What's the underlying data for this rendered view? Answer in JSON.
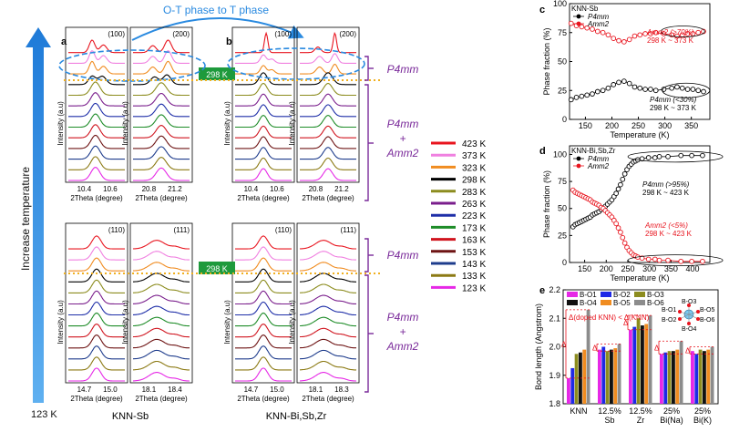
{
  "left": {
    "arrow_label": "Increase temperature",
    "arrow_bottom": "123 K",
    "phase_arrow_label": "O-T phase to T phase",
    "panel_a": "a",
    "panel_b": "b",
    "box_298": "298 K",
    "box_298_b": "298 K",
    "group_a_label": "KNN-Sb",
    "group_b_label": "KNN-Bi,Sb,Zr",
    "phase_p4mm_top": "P4mm",
    "phase_mix_top_1": "P4mm",
    "phase_mix_top_2": "+",
    "phase_mix_top_3": "Amm2",
    "phase_p4mm_bot": "P4mm",
    "phase_mix_bot_1": "P4mm",
    "phase_mix_bot_2": "+",
    "phase_mix_bot_3": "Amm2",
    "ylabel": "Intensity (a.u)",
    "xlabel": "2Theta (degree)",
    "peaks": {
      "a_top_1": {
        "label": "(100)",
        "ticks": [
          "10.4",
          "10.6"
        ]
      },
      "a_top_2": {
        "label": "(200)",
        "ticks": [
          "20.8",
          "21.2"
        ]
      },
      "b_top_1": {
        "label": "(100)",
        "ticks": [
          "10.4",
          "10.6"
        ]
      },
      "b_top_2": {
        "label": "(200)",
        "ticks": [
          "20.8",
          "21.2"
        ]
      },
      "a_bot_1": {
        "label": "(110)",
        "ticks": [
          "14.7",
          "15.0"
        ]
      },
      "a_bot_2": {
        "label": "(111)",
        "ticks": [
          "18.1",
          "18.4"
        ]
      },
      "b_bot_1": {
        "label": "(110)",
        "ticks": [
          "14.7",
          "15.0"
        ]
      },
      "b_bot_2": {
        "label": "(111)",
        "ticks": [
          "18.1",
          "18.3"
        ]
      }
    },
    "legend": [
      {
        "label": "423 K",
        "color": "#e8141e"
      },
      {
        "label": "373 K",
        "color": "#f080e0"
      },
      {
        "label": "323 K",
        "color": "#f08c20"
      },
      {
        "label": "298 K",
        "color": "#000000"
      },
      {
        "label": "283 K",
        "color": "#8c8c1e"
      },
      {
        "label": "263 K",
        "color": "#7a1e8c"
      },
      {
        "label": "223 K",
        "color": "#1e2ea8"
      },
      {
        "label": "173 K",
        "color": "#1e8c28"
      },
      {
        "label": "163 K",
        "color": "#d0141e"
      },
      {
        "label": "153 K",
        "color": "#6e1414"
      },
      {
        "label": "143 K",
        "color": "#1e3c8c"
      },
      {
        "label": "133 K",
        "color": "#8c7a14"
      },
      {
        "label": "123 K",
        "color": "#e628e6"
      }
    ]
  },
  "chart_data": [
    {
      "panel": "c",
      "type": "scatter",
      "title": "KNN-Sb",
      "xlabel": "Temperature (K)",
      "ylabel": "Phase fraction (%)",
      "xlim": [
        120,
        385
      ],
      "ylim": [
        0,
        100
      ],
      "xticks": [
        150,
        200,
        250,
        300,
        350
      ],
      "yticks": [
        0,
        25,
        50,
        75,
        100
      ],
      "x": [
        123,
        133,
        143,
        153,
        163,
        173,
        183,
        193,
        203,
        213,
        223,
        233,
        243,
        253,
        263,
        273,
        283,
        298,
        313,
        323,
        333,
        343,
        353,
        363,
        373
      ],
      "series": [
        {
          "name": "P4mm",
          "color": "#000000",
          "values": [
            17,
            19,
            20,
            21,
            22,
            24,
            25,
            27,
            30,
            32,
            33,
            31,
            28,
            27,
            26,
            26,
            25,
            26,
            27,
            28,
            27,
            26,
            26,
            25,
            24
          ]
        },
        {
          "name": "Amm2",
          "color": "#e8141e",
          "values": [
            83,
            81,
            80,
            79,
            78,
            76,
            75,
            73,
            70,
            68,
            67,
            69,
            72,
            73,
            74,
            74,
            75,
            74,
            73,
            72,
            73,
            74,
            74,
            75,
            76
          ]
        }
      ],
      "annotations": [
        {
          "text": "Amm2 (>70%)",
          "color": "#e8141e"
        },
        {
          "text": "298 K ~ 373 K",
          "color": "#e8141e"
        },
        {
          "text": "P4mm (<30%)",
          "color": "#000000"
        },
        {
          "text": "298 K ~ 373 K",
          "color": "#000000"
        }
      ]
    },
    {
      "panel": "d",
      "type": "scatter",
      "title": "KNN-Bi,Sb,Zr",
      "xlabel": "Temperature (K)",
      "ylabel": "Phase fraction (%)",
      "xlim": [
        115,
        440
      ],
      "ylim": [
        0,
        108
      ],
      "xticks": [
        150,
        200,
        250,
        300,
        350,
        400
      ],
      "yticks": [
        0,
        25,
        50,
        75,
        100
      ],
      "x": [
        123,
        128,
        133,
        138,
        143,
        148,
        153,
        158,
        163,
        168,
        173,
        178,
        183,
        188,
        193,
        198,
        203,
        208,
        213,
        218,
        223,
        228,
        233,
        238,
        243,
        248,
        253,
        258,
        263,
        268,
        273,
        283,
        298,
        313,
        323,
        343,
        373,
        398,
        423
      ],
      "series": [
        {
          "name": "P4mm",
          "color": "#000000",
          "values": [
            33,
            35,
            36,
            37,
            38,
            39,
            40,
            41,
            42,
            44,
            45,
            46,
            47,
            49,
            50,
            52,
            54,
            56,
            58,
            61,
            64,
            68,
            72,
            77,
            82,
            86,
            89,
            91,
            93,
            94,
            95,
            96,
            97,
            97,
            98,
            98,
            99,
            99,
            99
          ]
        },
        {
          "name": "Amm2",
          "color": "#e8141e",
          "values": [
            67,
            65,
            64,
            63,
            62,
            61,
            60,
            59,
            58,
            56,
            55,
            54,
            53,
            51,
            50,
            48,
            46,
            44,
            42,
            39,
            36,
            32,
            28,
            23,
            18,
            14,
            11,
            9,
            7,
            6,
            5,
            4,
            3,
            3,
            2,
            2,
            1,
            1,
            1
          ]
        }
      ],
      "annotations": [
        {
          "text": "P4mm (>95%)",
          "color": "#000000"
        },
        {
          "text": "298 K ~ 423 K",
          "color": "#000000"
        },
        {
          "text": "Amm2 (<5%)",
          "color": "#e8141e"
        },
        {
          "text": "298 K ~ 423 K",
          "color": "#e8141e"
        }
      ]
    },
    {
      "panel": "e",
      "type": "bar",
      "xlabel": "",
      "ylabel": "Bond length (Angstrom)",
      "ylim": [
        1.8,
        2.2
      ],
      "yticks": [
        1.8,
        1.9,
        2.0,
        2.1,
        2.2
      ],
      "categories": [
        [
          "KNN"
        ],
        [
          "12.5%",
          "Sb"
        ],
        [
          "12.5%",
          "Zr"
        ],
        [
          "25%",
          "Bi(Na)"
        ],
        [
          "25%",
          "Bi(K)"
        ]
      ],
      "series": [
        {
          "name": "B-O1",
          "color": "#e628e6",
          "values": [
            1.89,
            1.99,
            2.06,
            1.975,
            1.985
          ]
        },
        {
          "name": "B-O2",
          "color": "#1e28e6",
          "values": [
            1.925,
            2.0,
            2.07,
            1.98,
            1.975
          ]
        },
        {
          "name": "B-O3",
          "color": "#8c8c1e",
          "values": [
            1.975,
            1.985,
            2.1,
            1.985,
            1.99
          ]
        },
        {
          "name": "B-O4",
          "color": "#111111",
          "values": [
            1.98,
            1.99,
            2.075,
            1.985,
            1.985
          ]
        },
        {
          "name": "B-O5",
          "color": "#f08c20",
          "values": [
            1.99,
            1.995,
            2.08,
            1.99,
            1.99
          ]
        },
        {
          "name": "B-O6",
          "color": "#8c8c8c",
          "values": [
            2.13,
            2.01,
            2.11,
            2.02,
            2.0
          ]
        }
      ],
      "annotation": "Δ(doped KNN) < Δ(KNN)",
      "delta_symbol": "Δ",
      "inset_labels": [
        "B-O3",
        "B-O1",
        "B-O5",
        "B-O2",
        "B-O6",
        "B-O4"
      ]
    }
  ],
  "panel_letters": {
    "c": "c",
    "d": "d",
    "e": "e"
  }
}
